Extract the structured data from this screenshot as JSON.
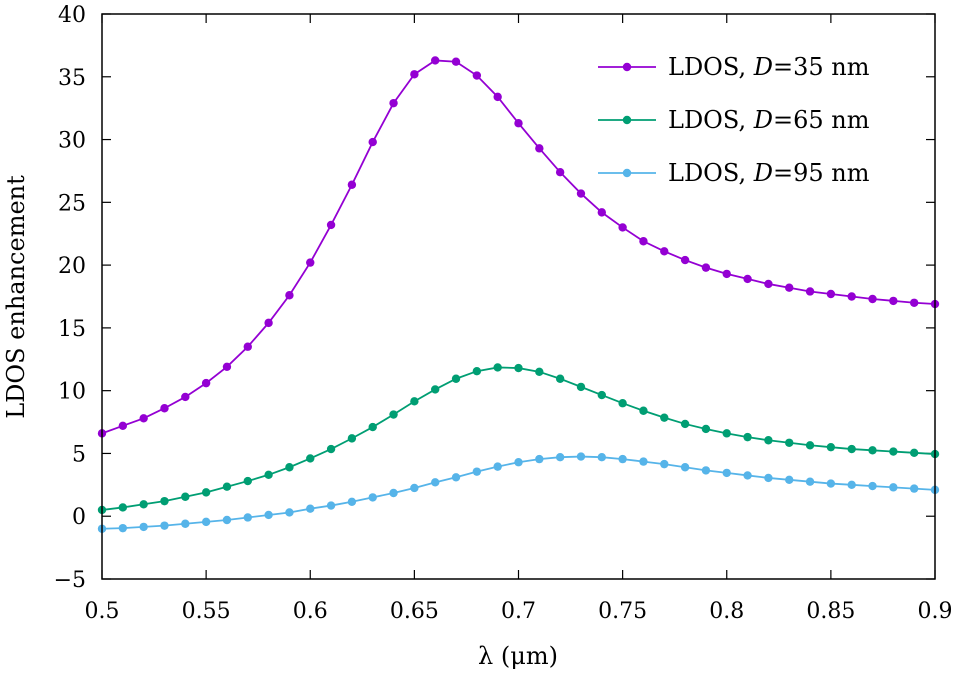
{
  "chart_data": {
    "type": "line",
    "xlabel": "λ (μm)",
    "ylabel": "LDOS enhancement",
    "xlim": [
      0.5,
      0.9
    ],
    "ylim": [
      -5,
      40
    ],
    "xticks": [
      0.5,
      0.55,
      0.6,
      0.65,
      0.7,
      0.75,
      0.8,
      0.85,
      0.9
    ],
    "xtick_labels": [
      "0.5",
      "0.55",
      "0.6",
      "0.65",
      "0.7",
      "0.75",
      "0.8",
      "0.85",
      "0.9"
    ],
    "yticks": [
      -5,
      0,
      5,
      10,
      15,
      20,
      25,
      30,
      35,
      40
    ],
    "ytick_labels": [
      "−5",
      "0",
      "5",
      "10",
      "15",
      "20",
      "25",
      "30",
      "35",
      "40"
    ],
    "grid": false,
    "legend_position": "top-right",
    "x": [
      0.5,
      0.51,
      0.52,
      0.53,
      0.54,
      0.55,
      0.56,
      0.57,
      0.58,
      0.59,
      0.6,
      0.61,
      0.62,
      0.63,
      0.64,
      0.65,
      0.66,
      0.67,
      0.68,
      0.69,
      0.7,
      0.71,
      0.72,
      0.73,
      0.74,
      0.75,
      0.76,
      0.77,
      0.78,
      0.79,
      0.8,
      0.81,
      0.82,
      0.83,
      0.84,
      0.85,
      0.86,
      0.87,
      0.88,
      0.89,
      0.9
    ],
    "series": [
      {
        "name": "LDOS, D=35 nm",
        "legend_prefix": "LDOS, ",
        "legend_var": "D",
        "legend_suffix": "=35 nm",
        "color": "#9400d3",
        "values": [
          6.6,
          7.2,
          7.8,
          8.6,
          9.5,
          10.6,
          11.9,
          13.5,
          15.4,
          17.6,
          20.2,
          23.2,
          26.4,
          29.8,
          32.9,
          35.2,
          36.3,
          36.2,
          35.1,
          33.4,
          31.3,
          29.3,
          27.4,
          25.7,
          24.2,
          23.0,
          21.9,
          21.1,
          20.4,
          19.8,
          19.3,
          18.9,
          18.5,
          18.2,
          17.9,
          17.7,
          17.5,
          17.3,
          17.15,
          17.0,
          16.9
        ]
      },
      {
        "name": "LDOS, D=65 nm",
        "legend_prefix": "LDOS, ",
        "legend_var": "D",
        "legend_suffix": "=65 nm",
        "color": "#009e73",
        "values": [
          0.5,
          0.7,
          0.95,
          1.2,
          1.55,
          1.9,
          2.35,
          2.8,
          3.3,
          3.9,
          4.6,
          5.35,
          6.2,
          7.1,
          8.1,
          9.15,
          10.1,
          10.95,
          11.55,
          11.85,
          11.8,
          11.5,
          10.95,
          10.3,
          9.65,
          9.0,
          8.4,
          7.85,
          7.35,
          6.95,
          6.6,
          6.3,
          6.05,
          5.85,
          5.65,
          5.5,
          5.35,
          5.25,
          5.15,
          5.05,
          4.95
        ]
      },
      {
        "name": "LDOS, D=95 nm",
        "legend_prefix": "LDOS, ",
        "legend_var": "D",
        "legend_suffix": "=95 nm",
        "color": "#56b4e9",
        "values": [
          -1.0,
          -0.95,
          -0.85,
          -0.75,
          -0.6,
          -0.45,
          -0.3,
          -0.1,
          0.1,
          0.3,
          0.6,
          0.85,
          1.15,
          1.5,
          1.85,
          2.25,
          2.7,
          3.1,
          3.55,
          3.95,
          4.3,
          4.55,
          4.7,
          4.75,
          4.7,
          4.55,
          4.35,
          4.15,
          3.9,
          3.65,
          3.45,
          3.25,
          3.05,
          2.9,
          2.75,
          2.6,
          2.5,
          2.4,
          2.3,
          2.2,
          2.1
        ]
      }
    ]
  }
}
